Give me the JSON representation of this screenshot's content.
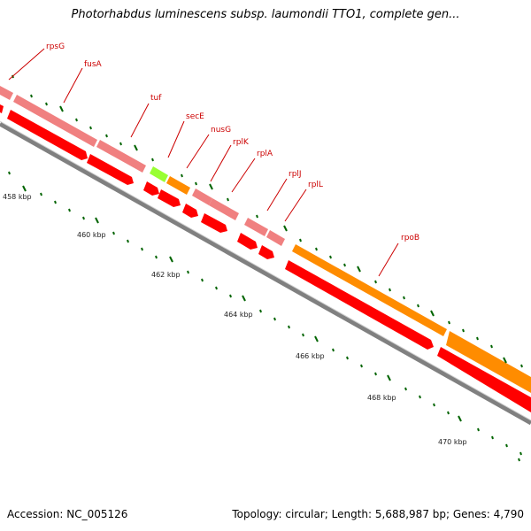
{
  "title": "Photorhabdus luminescens subsp. laumondii TTO1, complete gen...",
  "footer": {
    "accession": "Accession: NC_005126",
    "topology": "Topology: circular; Length: 5,688,987 bp; Genes: 4,790"
  },
  "colors": {
    "rrna_light": "#f08080",
    "cds_red": "#ff0000",
    "orange": "#ff8c00",
    "green": "#99ff33",
    "backbone": "#808080",
    "label": "#cc0000",
    "tick": "#006400"
  },
  "ticks": [
    "458 kbp",
    "460 kbp",
    "462 kbp",
    "464 kbp",
    "466 kbp",
    "468 kbp",
    "470 kbp"
  ],
  "genes": [
    "rpsG",
    "fusA",
    "tuf",
    "secE",
    "nusG",
    "rplK",
    "rplA",
    "rplJ",
    "rplL",
    "rpoB"
  ]
}
